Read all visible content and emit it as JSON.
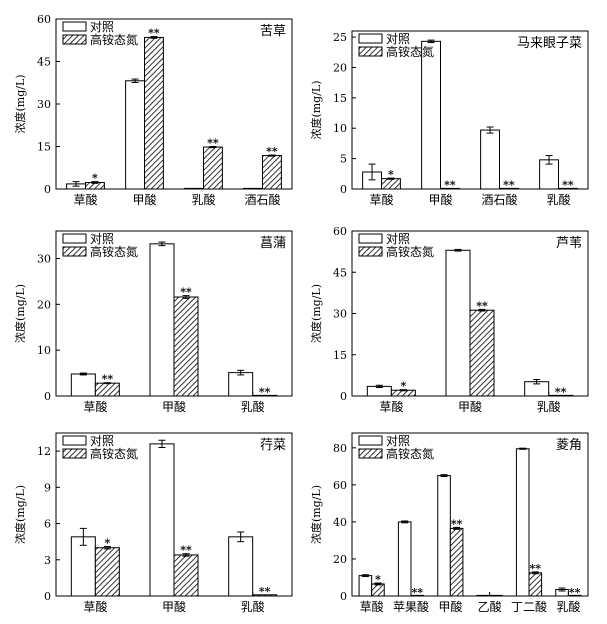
{
  "legend": {
    "control": "对照",
    "treatment": "高铵态氮"
  },
  "ylabel": "浓度(mg/L)",
  "chart_data": [
    {
      "type": "bar",
      "title": "苦草",
      "categories": [
        "草酸",
        "甲酸",
        "乳酸",
        "酒石酸"
      ],
      "series": [
        {
          "name": "对照",
          "values": [
            1.8,
            38.2,
            0.1,
            0.1
          ],
          "errors": [
            0.8,
            0.6,
            0,
            0
          ]
        },
        {
          "name": "高铵态氮",
          "values": [
            2.3,
            53.5,
            14.8,
            11.8
          ],
          "errors": [
            0.3,
            0.3,
            0.2,
            0.2
          ]
        }
      ],
      "significance": [
        "*",
        "**",
        "**",
        "**"
      ],
      "ylim": [
        0,
        60
      ],
      "yticks": [
        0,
        15,
        30,
        45,
        60
      ],
      "ylabel": "浓度(mg/L)",
      "legend_position": "top-left"
    },
    {
      "type": "bar",
      "title": "马来眼子菜",
      "categories": [
        "草酸",
        "甲酸",
        "酒石酸",
        "乳酸"
      ],
      "series": [
        {
          "name": "对照",
          "values": [
            2.8,
            24.3,
            9.7,
            4.8
          ],
          "errors": [
            1.3,
            0.2,
            0.5,
            0.7
          ]
        },
        {
          "name": "高铵态氮",
          "values": [
            1.7,
            0.1,
            0.1,
            0.1
          ],
          "errors": [
            0.1,
            0,
            0,
            0
          ]
        }
      ],
      "significance": [
        "*",
        "**",
        "**",
        "**"
      ],
      "ylim": [
        0,
        26
      ],
      "yticks": [
        0,
        5,
        10,
        15,
        20,
        25
      ],
      "ylabel": "浓度(mg/L)",
      "legend_position": "top-left"
    },
    {
      "type": "bar",
      "title": "菖蒲",
      "categories": [
        "草酸",
        "甲酸",
        "乳酸"
      ],
      "series": [
        {
          "name": "对照",
          "values": [
            4.8,
            33.2,
            5.1
          ],
          "errors": [
            0.2,
            0.4,
            0.5
          ]
        },
        {
          "name": "高铵态氮",
          "values": [
            2.8,
            21.6,
            0.1
          ],
          "errors": [
            0.1,
            0.3,
            0
          ]
        }
      ],
      "significance": [
        "**",
        "**",
        "**"
      ],
      "ylim": [
        0,
        36
      ],
      "yticks": [
        0,
        10,
        20,
        30
      ],
      "ylabel": "浓度(mg/L)",
      "legend_position": "top-left"
    },
    {
      "type": "bar",
      "title": "芦苇",
      "categories": [
        "草酸",
        "甲酸",
        "乳酸"
      ],
      "series": [
        {
          "name": "对照",
          "values": [
            3.5,
            53.0,
            5.2
          ],
          "errors": [
            0.4,
            0.3,
            0.8
          ]
        },
        {
          "name": "高铵态氮",
          "values": [
            2.1,
            31.2,
            0.1
          ],
          "errors": [
            0.2,
            0.3,
            0
          ]
        }
      ],
      "significance": [
        "*",
        "**",
        "**"
      ],
      "ylim": [
        0,
        60
      ],
      "yticks": [
        0,
        15,
        30,
        45,
        60
      ],
      "ylabel": "浓度(mg/L)",
      "legend_position": "top-left"
    },
    {
      "type": "bar",
      "title": "荇菜",
      "categories": [
        "草酸",
        "甲酸",
        "乳酸"
      ],
      "series": [
        {
          "name": "对照",
          "values": [
            4.9,
            12.6,
            4.9
          ],
          "errors": [
            0.7,
            0.3,
            0.4
          ]
        },
        {
          "name": "高铵态氮",
          "values": [
            4.0,
            3.4,
            0.1
          ],
          "errors": [
            0.1,
            0.1,
            0
          ]
        }
      ],
      "significance": [
        "*",
        "**",
        "**"
      ],
      "ylim": [
        0,
        13.5
      ],
      "yticks": [
        0,
        3,
        6,
        9,
        12
      ],
      "ylabel": "浓度(mg/L)",
      "legend_position": "top-left"
    },
    {
      "type": "bar",
      "title": "菱角",
      "categories": [
        "草酸",
        "苹果酸",
        "甲酸",
        "乙酸",
        "丁二酸",
        "乳酸"
      ],
      "series": [
        {
          "name": "对照",
          "values": [
            11.0,
            40.0,
            65.0,
            0.1,
            79.5,
            3.5
          ],
          "errors": [
            0.5,
            0.5,
            0.5,
            0,
            0.3,
            0.8
          ]
        },
        {
          "name": "高铵态氮",
          "values": [
            6.5,
            0.1,
            36.5,
            0.1,
            12.5,
            0.1
          ],
          "errors": [
            0.5,
            0,
            0.5,
            0,
            0.5,
            0
          ]
        }
      ],
      "significance": [
        "*",
        "**",
        "**",
        "",
        "**",
        "**"
      ],
      "ylim": [
        0,
        88
      ],
      "yticks": [
        0,
        20,
        40,
        60,
        80
      ],
      "ylabel": "浓度(mg/L)",
      "legend_position": "top-left"
    }
  ]
}
